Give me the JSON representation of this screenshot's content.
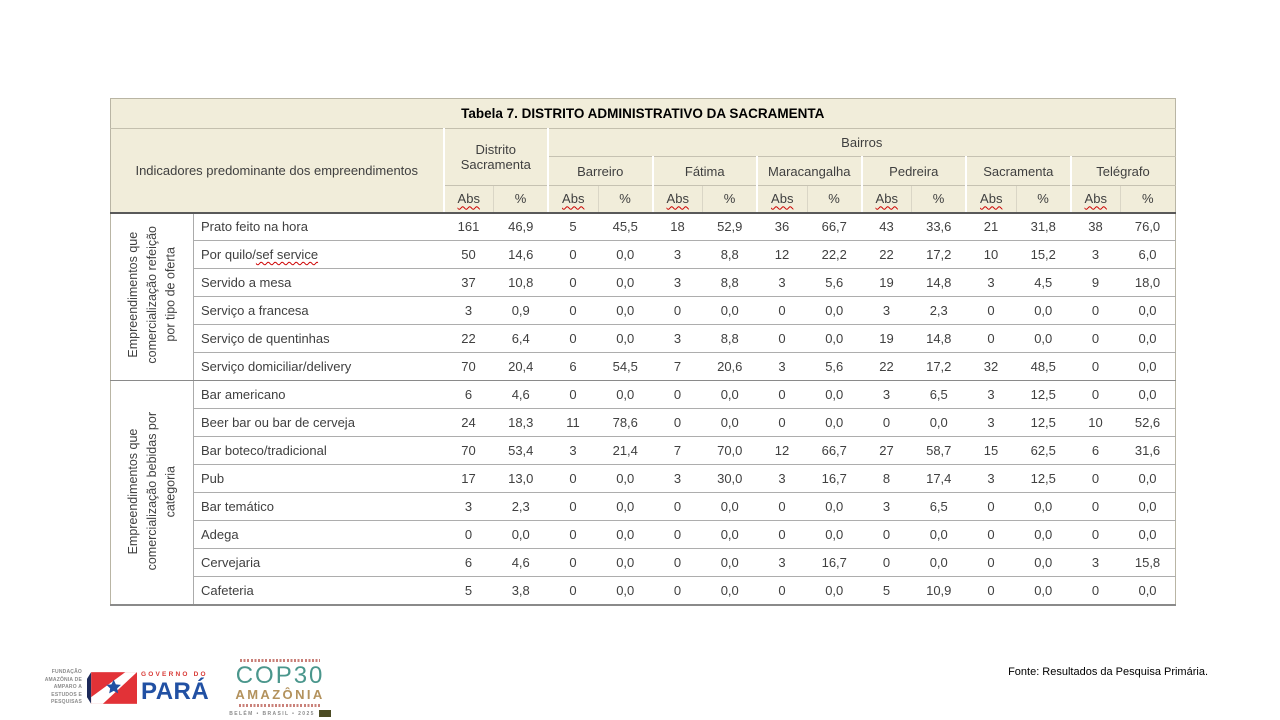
{
  "table": {
    "title": "Tabela 7. DISTRITO ADMINISTRATIVO DA SACRAMENTA",
    "stub_header": "Indicadores predominante dos empreendimentos",
    "district_header": "Distrito Sacramenta",
    "bairros_header": "Bairros",
    "bairros": [
      "Barreiro",
      "Fátima",
      "Maracangalha",
      "Pedreira",
      "Sacramenta",
      "Telégrafo"
    ],
    "abs_label": "Abs",
    "pct_label": "%",
    "groups": [
      {
        "label_lines": [
          "Empreendimentos que",
          "comercialização refeição",
          "por tipo de oferta"
        ],
        "rows": [
          {
            "label": "Prato feito na hora",
            "values": [
              "161",
              "46,9",
              "5",
              "45,5",
              "18",
              "52,9",
              "36",
              "66,7",
              "43",
              "33,6",
              "21",
              "31,8",
              "38",
              "76,0"
            ]
          },
          {
            "label": "Por quilo/sef service",
            "squiggle": "sef service",
            "values": [
              "50",
              "14,6",
              "0",
              "0,0",
              "3",
              "8,8",
              "12",
              "22,2",
              "22",
              "17,2",
              "10",
              "15,2",
              "3",
              "6,0"
            ]
          },
          {
            "label": "Servido a mesa",
            "values": [
              "37",
              "10,8",
              "0",
              "0,0",
              "3",
              "8,8",
              "3",
              "5,6",
              "19",
              "14,8",
              "3",
              "4,5",
              "9",
              "18,0"
            ]
          },
          {
            "label": "Serviço a francesa",
            "values": [
              "3",
              "0,9",
              "0",
              "0,0",
              "0",
              "0,0",
              "0",
              "0,0",
              "3",
              "2,3",
              "0",
              "0,0",
              "0",
              "0,0"
            ]
          },
          {
            "label": "Serviço de quentinhas",
            "values": [
              "22",
              "6,4",
              "0",
              "0,0",
              "3",
              "8,8",
              "0",
              "0,0",
              "19",
              "14,8",
              "0",
              "0,0",
              "0",
              "0,0"
            ]
          },
          {
            "label": "Serviço domiciliar/delivery",
            "values": [
              "70",
              "20,4",
              "6",
              "54,5",
              "7",
              "20,6",
              "3",
              "5,6",
              "22",
              "17,2",
              "32",
              "48,5",
              "0",
              "0,0"
            ]
          }
        ]
      },
      {
        "label_lines": [
          "Empreendimentos que",
          "comercialização bebidas por",
          "categoria"
        ],
        "rows": [
          {
            "label": "Bar americano",
            "values": [
              "6",
              "4,6",
              "0",
              "0,0",
              "0",
              "0,0",
              "0",
              "0,0",
              "3",
              "6,5",
              "3",
              "12,5",
              "0",
              "0,0"
            ]
          },
          {
            "label": "Beer bar ou bar de cerveja",
            "values": [
              "24",
              "18,3",
              "11",
              "78,6",
              "0",
              "0,0",
              "0",
              "0,0",
              "0",
              "0,0",
              "3",
              "12,5",
              "10",
              "52,6"
            ]
          },
          {
            "label": "Bar boteco/tradicional",
            "values": [
              "70",
              "53,4",
              "3",
              "21,4",
              "7",
              "70,0",
              "12",
              "66,7",
              "27",
              "58,7",
              "15",
              "62,5",
              "6",
              "31,6"
            ]
          },
          {
            "label": "Pub",
            "values": [
              "17",
              "13,0",
              "0",
              "0,0",
              "3",
              "30,0",
              "3",
              "16,7",
              "8",
              "17,4",
              "3",
              "12,5",
              "0",
              "0,0"
            ]
          },
          {
            "label": "Bar temático",
            "values": [
              "3",
              "2,3",
              "0",
              "0,0",
              "0",
              "0,0",
              "0",
              "0,0",
              "3",
              "6,5",
              "0",
              "0,0",
              "0",
              "0,0"
            ]
          },
          {
            "label": "Adega",
            "values": [
              "0",
              "0,0",
              "0",
              "0,0",
              "0",
              "0,0",
              "0",
              "0,0",
              "0",
              "0,0",
              "0",
              "0,0",
              "0",
              "0,0"
            ]
          },
          {
            "label": "Cervejaria",
            "values": [
              "6",
              "4,6",
              "0",
              "0,0",
              "0",
              "0,0",
              "3",
              "16,7",
              "0",
              "0,0",
              "0",
              "0,0",
              "3",
              "15,8"
            ]
          },
          {
            "label": "Cafeteria",
            "values": [
              "5",
              "3,8",
              "0",
              "0,0",
              "0",
              "0,0",
              "0",
              "0,0",
              "5",
              "10,9",
              "0",
              "0,0",
              "0",
              "0,0"
            ]
          }
        ]
      }
    ]
  },
  "footer": {
    "fonte": "Fonte: Resultados da Pesquisa Primária.",
    "fapespa_text": "FUNDAÇÃO AMAZÔNIA DE\nAMPARO A ESTUDOS E\nPESQUISAS",
    "governo_small": "GOVERNO DO",
    "governo_big": "PARÁ",
    "cop30_title": "COP30",
    "cop30_subtitle": "AMAZÔNIA",
    "cop30_location": "BELÉM • BRASIL • 2025"
  },
  "colors": {
    "header_bg": "#f1edda",
    "para_red": "#d83a36",
    "para_blue": "#2150a3",
    "cop30_green": "#4a968c",
    "cop30_bronze": "#b3925d"
  }
}
